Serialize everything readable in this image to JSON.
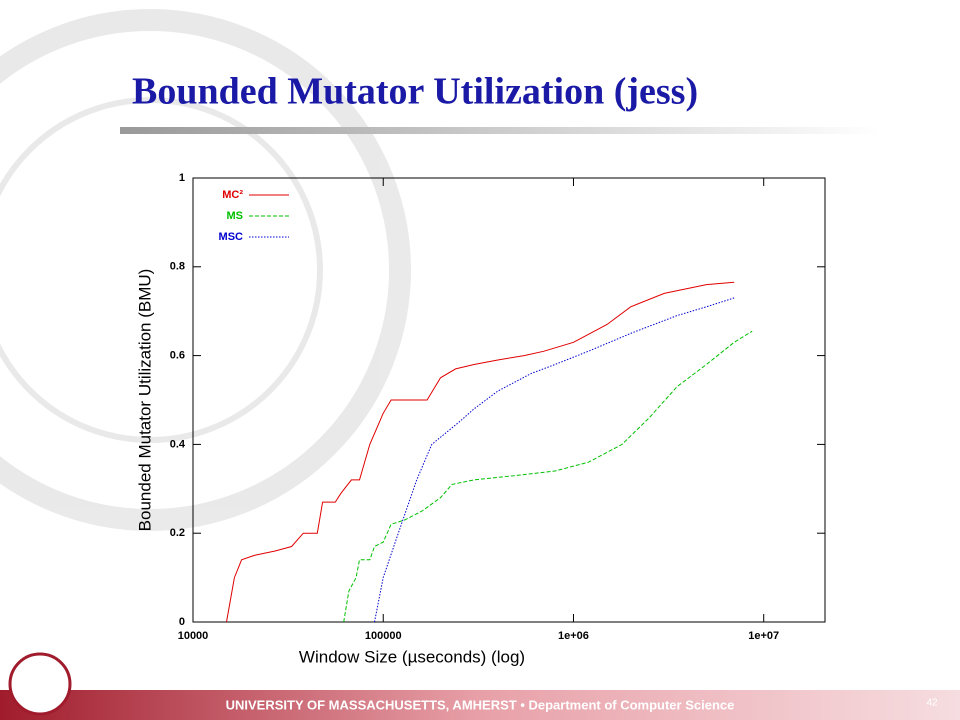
{
  "slide": {
    "title": "Bounded Mutator Utilization (jess)",
    "footer": "UNIVERSITY OF MASSACHUSETTS, AMHERST • Department of Computer Science",
    "page_number": "42"
  },
  "chart_data": {
    "type": "line",
    "xlabel": "Window Size (µseconds) (log)",
    "ylabel": "Bounded Mutator Utilization (BMU)",
    "xscale": "log",
    "xlim": [
      10000,
      21000000
    ],
    "xticks": [
      10000,
      100000,
      {
        "value": 1000000,
        "label": "1e+06"
      },
      {
        "value": 10000000,
        "label": "1e+07"
      }
    ],
    "ylim": [
      0,
      1
    ],
    "yticks": [
      0,
      0.2,
      0.4,
      0.6,
      0.8,
      1
    ],
    "grid": false,
    "legend": "upper-left",
    "series": [
      {
        "name": "MC²",
        "color": "#e00000",
        "dash": "solid",
        "x": [
          15000,
          16500,
          18000,
          21000,
          27000,
          33000,
          38000,
          45000,
          48000,
          56000,
          60000,
          68000,
          75000,
          85000,
          100000,
          110000,
          170000,
          200000,
          240000,
          300000,
          400000,
          550000,
          700000,
          1000000,
          1500000,
          2000000,
          3000000,
          5000000,
          7000000
        ],
        "values": [
          0,
          0.1,
          0.14,
          0.15,
          0.16,
          0.17,
          0.2,
          0.2,
          0.27,
          0.27,
          0.29,
          0.32,
          0.32,
          0.4,
          0.47,
          0.5,
          0.5,
          0.55,
          0.57,
          0.58,
          0.59,
          0.6,
          0.61,
          0.63,
          0.67,
          0.71,
          0.74,
          0.76,
          0.765
        ]
      },
      {
        "name": "MS",
        "color": "#00c000",
        "dash": "dashed",
        "x": [
          62000,
          66000,
          72000,
          75000,
          85000,
          90000,
          100000,
          110000,
          130000,
          160000,
          200000,
          230000,
          300000,
          500000,
          800000,
          1200000,
          1800000,
          2500000,
          3500000,
          5000000,
          7000000,
          8700000
        ],
        "values": [
          0,
          0.07,
          0.1,
          0.14,
          0.14,
          0.17,
          0.18,
          0.22,
          0.23,
          0.25,
          0.28,
          0.31,
          0.32,
          0.33,
          0.34,
          0.36,
          0.4,
          0.46,
          0.53,
          0.58,
          0.63,
          0.655
        ]
      },
      {
        "name": "MSC",
        "color": "#0000d0",
        "dash": "dotted",
        "x": [
          90000,
          100000,
          120000,
          150000,
          180000,
          250000,
          300000,
          400000,
          600000,
          800000,
          1200000,
          2000000,
          3500000,
          5000000,
          7000000
        ],
        "values": [
          0,
          0.1,
          0.2,
          0.32,
          0.4,
          0.45,
          0.48,
          0.52,
          0.56,
          0.58,
          0.61,
          0.65,
          0.69,
          0.71,
          0.73
        ]
      }
    ]
  }
}
